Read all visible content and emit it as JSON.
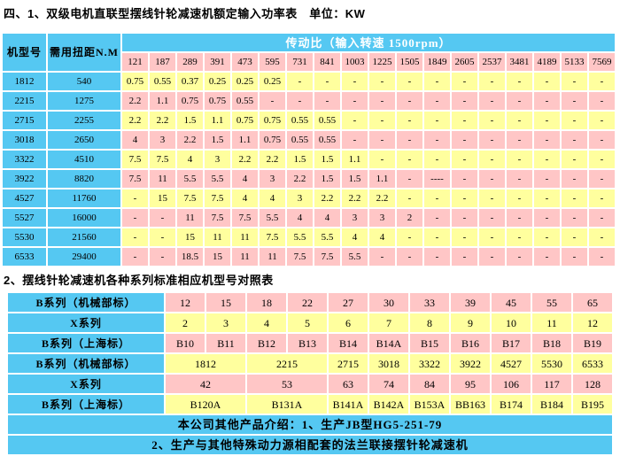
{
  "titles": {
    "power_table_title": "四、1、双级电机直联型摆线针轮减速机额定输入功率表　单位：KW",
    "model_table_title": "2、摆线针轮减速机各种系列标准相应机型号对照表"
  },
  "colors": {
    "blue": "#55C8F2",
    "pink": "#FFC6C6",
    "yellow": "#FFFF9E",
    "header_text": "#FFFFFF",
    "grid": "#FFFFFF",
    "text": "#000000"
  },
  "power_table": {
    "col_model": "机型号",
    "col_torque": "需用扭距N.M",
    "ratio_header": "传动比（输入转速 1500rpm）",
    "ratios": [
      "121",
      "187",
      "289",
      "391",
      "473",
      "595",
      "731",
      "841",
      "1003",
      "1225",
      "1505",
      "1849",
      "2605",
      "2537",
      "3481",
      "4189",
      "5133",
      "7569"
    ],
    "rows": [
      {
        "model": "1812",
        "torque": "540",
        "values": [
          "0.75",
          "0.55",
          "0.37",
          "0.25",
          "0.25",
          "0.25",
          "-",
          "-",
          "-",
          "-",
          "-",
          "-",
          "-",
          "-",
          "-",
          "-",
          "-",
          "-"
        ]
      },
      {
        "model": "2215",
        "torque": "1275",
        "values": [
          "2.2",
          "1.1",
          "0.75",
          "0.75",
          "0.55",
          "-",
          "-",
          "-",
          "-",
          "-",
          "-",
          "-",
          "-",
          "-",
          "-",
          "-",
          "-",
          "-"
        ]
      },
      {
        "model": "2715",
        "torque": "2255",
        "values": [
          "2.2",
          "2.2",
          "1.5",
          "1.1",
          "0.75",
          "0.75",
          "0.55",
          "0.55",
          "-",
          "-",
          "-",
          "-",
          "-",
          "-",
          "-",
          "-",
          "-",
          "-"
        ]
      },
      {
        "model": "3018",
        "torque": "2650",
        "values": [
          "4",
          "3",
          "2.2",
          "1.5",
          "1.1",
          "0.75",
          "0.55",
          "0.55",
          "-",
          "-",
          "-",
          "-",
          "-",
          "-",
          "-",
          "-",
          "-",
          "-"
        ]
      },
      {
        "model": "3322",
        "torque": "4510",
        "values": [
          "7.5",
          "7.5",
          "4",
          "3",
          "2.2",
          "2.2",
          "1.5",
          "1.5",
          "1.1",
          "-",
          "-",
          "-",
          "-",
          "-",
          "-",
          "-",
          "-",
          "-"
        ]
      },
      {
        "model": "3922",
        "torque": "8820",
        "values": [
          "7.5",
          "11",
          "5.5",
          "5.5",
          "4",
          "3",
          "2.2",
          "1.5",
          "1.5",
          "1.1",
          "-",
          "----",
          "-",
          "-",
          "-",
          "-",
          "-",
          "-"
        ]
      },
      {
        "model": "4527",
        "torque": "11760",
        "values": [
          "-",
          "15",
          "7.5",
          "7.5",
          "4",
          "4",
          "3",
          "2.2",
          "2.2",
          "2.2",
          "-",
          "-",
          "-",
          "-",
          "-",
          "-",
          "-",
          "-"
        ]
      },
      {
        "model": "5527",
        "torque": "16000",
        "values": [
          "-",
          "-",
          "11",
          "7.5",
          "7.5",
          "5.5",
          "4",
          "4",
          "3",
          "3",
          "2",
          "-",
          "-",
          "-",
          "-",
          "-",
          "-",
          "-"
        ]
      },
      {
        "model": "5530",
        "torque": "21560",
        "values": [
          "-",
          "-",
          "15",
          "11",
          "11",
          "7.5",
          "5.5",
          "5.5",
          "4",
          "4",
          "-",
          "-",
          "-",
          "-",
          "-",
          "-",
          "-",
          "-"
        ]
      },
      {
        "model": "6533",
        "torque": "29400",
        "values": [
          "-",
          "-",
          "18.5",
          "15",
          "11",
          "11",
          "7.5",
          "7.5",
          "5.5",
          "-",
          "-",
          "-",
          "-",
          "-",
          "-",
          "-",
          "-",
          "-"
        ]
      }
    ]
  },
  "model_table": {
    "rows": [
      {
        "label": "B系列（机械部标）",
        "values": [
          "12",
          "15",
          "18",
          "22",
          "27",
          "30",
          "33",
          "39",
          "45",
          "55",
          "65"
        ]
      },
      {
        "label": "X系列",
        "values": [
          "2",
          "3",
          "4",
          "5",
          "6",
          "7",
          "8",
          "9",
          "10",
          "11",
          "12"
        ]
      },
      {
        "label": "B系列（上海标）",
        "values": [
          "B10",
          "B11",
          "B12",
          "B13",
          "B14",
          "B14A",
          "B15",
          "B16",
          "B17",
          "B18",
          "B19"
        ]
      },
      {
        "label": "B系列（机械部标）",
        "values": [
          "1812",
          "2215",
          "2715",
          "3018",
          "3322",
          "3922",
          "4527",
          "5530",
          "6533"
        ],
        "spans": [
          2,
          2,
          1,
          1,
          1,
          1,
          1,
          1,
          1
        ]
      },
      {
        "label": "X系列",
        "values": [
          "42",
          "53",
          "63",
          "74",
          "84",
          "95",
          "106",
          "117",
          "128"
        ],
        "spans": [
          2,
          2,
          1,
          1,
          1,
          1,
          1,
          1,
          1
        ]
      },
      {
        "label": "B系列（上海标）",
        "values": [
          "B120A",
          "B131A",
          "B141A",
          "B142A",
          "B153A",
          "BB163",
          "B174",
          "B184",
          "B195"
        ],
        "spans": [
          2,
          2,
          1,
          1,
          1,
          1,
          1,
          1,
          1
        ]
      }
    ],
    "footers": [
      "本公司其他产品介绍：1、生产JB型HG5-251-79",
      "2、生产与其他特殊动力源相配套的法兰联接摆针轮减速机"
    ]
  }
}
